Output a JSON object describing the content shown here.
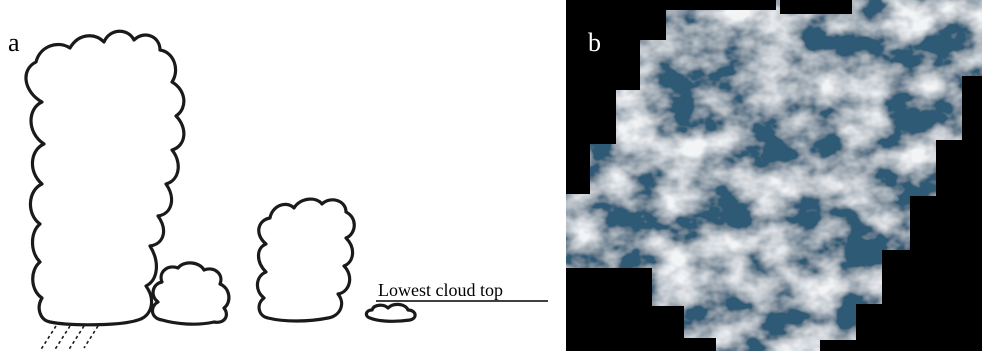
{
  "panel_a": {
    "label": "a",
    "lowest_cloud_top_label": "Lowest cloud top"
  },
  "panel_b": {
    "label": "b"
  },
  "colors": {
    "cloud_outline": "#1a1a1a",
    "background": "#ffffff",
    "mask": "#000000",
    "cloud_white": "#f2f4f6",
    "ocean_blue": "#2e5a74"
  }
}
